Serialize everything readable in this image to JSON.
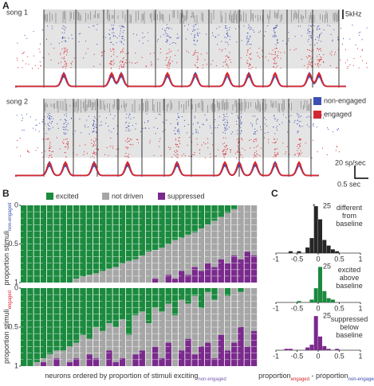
{
  "panel_a": {
    "label": "A",
    "songs": [
      {
        "label": "song 1"
      },
      {
        "label": "song 2"
      }
    ],
    "scale_freq": "5kHz",
    "legend": [
      {
        "name": "non-engaged",
        "color": "#3b4fb3"
      },
      {
        "name": "engaged",
        "color": "#d8262c"
      }
    ],
    "scale_rate": "20 sp/sec",
    "scale_time": "0.5 sec"
  },
  "panel_b": {
    "label": "B",
    "y_label": "proportion stimuli",
    "y_label_sub": [
      "non-engaged",
      "engaged"
    ],
    "x_label": "neurons ordered by proportion of stimuli exciting",
    "x_label_sub": "non-engaged"
  },
  "panel_c": {
    "label": "C",
    "x_label_a": "proportion",
    "x_label_a_sub": "engaged",
    "x_label_b": " - proportion",
    "x_label_b_sub": "non-engaged"
  },
  "chart_data": [
    {
      "type": "bar",
      "stacked": true,
      "ylim": [
        1,
        0
      ],
      "yticks": [
        0,
        0.5,
        1
      ],
      "series": [
        {
          "name": "excited",
          "color": "#1b8a3e",
          "values": [
            1,
            1,
            1,
            1,
            1,
            1,
            1,
            1,
            0.95,
            0.92,
            0.9,
            0.88,
            0.85,
            0.82,
            0.8,
            0.75,
            0.72,
            0.7,
            0.65,
            0.6,
            0.58,
            0.55,
            0.5,
            0.45,
            0.42,
            0.38,
            0.35,
            0.3,
            0.25,
            0.2,
            0.15,
            0.1,
            0.05,
            0,
            0,
            0
          ]
        },
        {
          "name": "not driven",
          "color": "#a6a6a6",
          "values": [
            0,
            0,
            0,
            0,
            0,
            0,
            0,
            0,
            0.05,
            0.08,
            0.1,
            0.12,
            0.15,
            0.18,
            0.2,
            0.25,
            0.28,
            0.3,
            0.35,
            0.4,
            0.37,
            0.45,
            0.4,
            0.5,
            0.43,
            0.52,
            0.45,
            0.55,
            0.5,
            0.6,
            0.55,
            0.65,
            0.6,
            0.7,
            0.6,
            0.65
          ]
        },
        {
          "name": "suppressed",
          "color": "#7a2a8c",
          "values": [
            0,
            0,
            0,
            0,
            0,
            0,
            0,
            0,
            0,
            0,
            0,
            0,
            0,
            0,
            0,
            0,
            0,
            0,
            0,
            0,
            0.05,
            0,
            0.1,
            0.05,
            0.15,
            0.1,
            0.2,
            0.15,
            0.25,
            0.2,
            0.3,
            0.25,
            0.35,
            0.3,
            0.4,
            0.35
          ]
        }
      ]
    },
    {
      "type": "bar",
      "stacked": true,
      "ylim": [
        1,
        0
      ],
      "yticks": [
        0,
        0.5,
        1
      ],
      "series": [
        {
          "color": "#1b8a3e",
          "values": [
            1,
            1,
            0.95,
            0.9,
            0.85,
            0.8,
            0.8,
            0.75,
            0.7,
            0.6,
            0.65,
            0.5,
            0.55,
            0.45,
            0.5,
            0.4,
            0.6,
            0.35,
            0.3,
            0.45,
            0.25,
            0.3,
            0.2,
            0.35,
            0.15,
            0.2,
            0.1,
            0.25,
            0.05,
            0.15,
            0,
            0.1,
            0,
            0.05,
            0,
            0
          ]
        },
        {
          "color": "#a6a6a6",
          "values": [
            0,
            0,
            0.05,
            0.05,
            0.15,
            0.1,
            0.2,
            0.2,
            0.2,
            0.4,
            0.2,
            0.4,
            0.45,
            0.35,
            0.45,
            0.5,
            0.4,
            0.5,
            0.5,
            0.55,
            0.5,
            0.6,
            0.5,
            0.65,
            0.65,
            0.45,
            0.75,
            0.5,
            0.65,
            0.75,
            0.6,
            0.7,
            0.7,
            0.45,
            0.75,
            0.55
          ]
        },
        {
          "color": "#7a2a8c",
          "values": [
            0,
            0,
            0,
            0.05,
            0,
            0.1,
            0,
            0.05,
            0.1,
            0,
            0.15,
            0.1,
            0,
            0.2,
            0.05,
            0.1,
            0,
            0.15,
            0.2,
            0,
            0.25,
            0.1,
            0.3,
            0,
            0.2,
            0.35,
            0.15,
            0.25,
            0.3,
            0.1,
            0.4,
            0.2,
            0.3,
            0.5,
            0.25,
            0.45
          ]
        }
      ]
    },
    {
      "type": "histogram",
      "color": "#262626",
      "annotation": "different from baseline",
      "marker": "*",
      "bins": [
        -1,
        -0.9,
        -0.8,
        -0.7,
        -0.6,
        -0.5,
        -0.4,
        -0.3,
        -0.2,
        -0.1,
        0,
        0.1,
        0.2,
        0.3,
        0.4,
        0.5,
        0.6,
        0.7,
        0.8,
        0.9,
        1
      ],
      "values": [
        0,
        0,
        0,
        1,
        0,
        1,
        0,
        3,
        8,
        25,
        18,
        7,
        4,
        2,
        1,
        0,
        0,
        0,
        0,
        0
      ],
      "xlim": [
        -1,
        1
      ],
      "xticks": [
        -1,
        -0.5,
        0,
        0.5,
        1
      ],
      "ylim": [
        0,
        28
      ],
      "yticks": [
        25
      ]
    },
    {
      "type": "histogram",
      "color": "#1b8a3e",
      "annotation": "excited above baseline",
      "bins": [
        -1,
        -0.9,
        -0.8,
        -0.7,
        -0.6,
        -0.5,
        -0.4,
        -0.3,
        -0.2,
        -0.1,
        0,
        0.1,
        0.2,
        0.3,
        0.4,
        0.5,
        0.6,
        0.7,
        0.8,
        0.9,
        1
      ],
      "values": [
        0,
        0,
        0,
        0,
        0,
        1,
        0,
        0,
        2,
        10,
        25,
        8,
        3,
        2,
        0,
        0,
        0,
        0,
        0,
        0
      ],
      "xlim": [
        -1,
        1
      ],
      "xticks": [
        -1,
        -0.5,
        0,
        0.5,
        1
      ],
      "ylim": [
        0,
        28
      ],
      "yticks": [
        25
      ]
    },
    {
      "type": "histogram",
      "color": "#7a2a8c",
      "annotation": "suppressed below baseline",
      "bins": [
        -1,
        -0.9,
        -0.8,
        -0.7,
        -0.6,
        -0.5,
        -0.4,
        -0.3,
        -0.2,
        -0.1,
        0,
        0.1,
        0.2,
        0.3,
        0.4,
        0.5,
        0.6,
        0.7,
        0.8,
        0.9,
        1
      ],
      "values": [
        0,
        0,
        1,
        1,
        0,
        0,
        0,
        2,
        4,
        25,
        10,
        3,
        1,
        0,
        1,
        0,
        0,
        0,
        0,
        0
      ],
      "xlim": [
        -1,
        1
      ],
      "xticks": [
        -1,
        -0.5,
        0,
        0.5,
        1
      ],
      "ylim": [
        0,
        28
      ],
      "yticks": [
        25
      ]
    }
  ]
}
